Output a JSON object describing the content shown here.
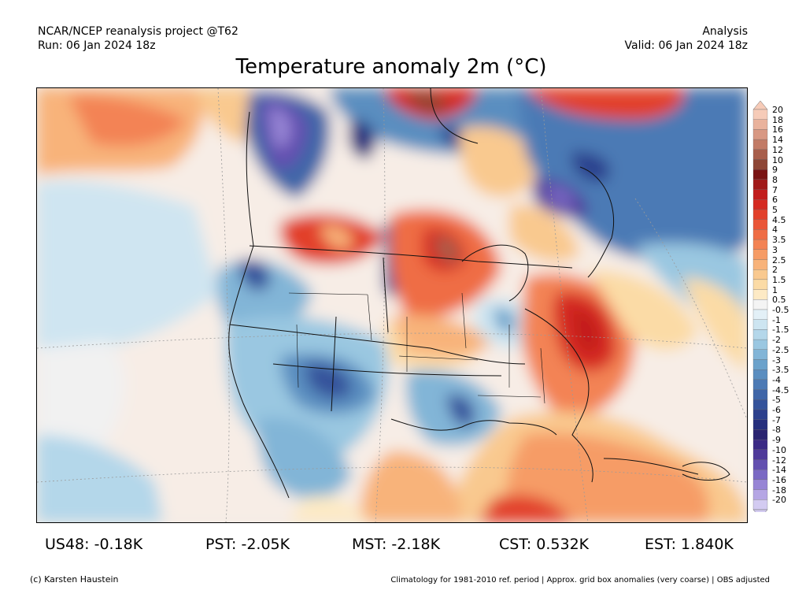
{
  "header": {
    "source": "NCAR/NCEP reanalysis project @T62",
    "run": "Run: 06 Jan 2024 18z",
    "kind": "Analysis",
    "valid": "Valid: 06 Jan 2024 18z"
  },
  "title": "Temperature anomaly 2m (°C)",
  "colorbar": {
    "levels": [
      {
        "label": "20",
        "color": "#f6cbb8"
      },
      {
        "label": "18",
        "color": "#e9b29c"
      },
      {
        "label": "16",
        "color": "#d89883"
      },
      {
        "label": "14",
        "color": "#c27b66"
      },
      {
        "label": "12",
        "color": "#a85e4b"
      },
      {
        "label": "10",
        "color": "#8e4636"
      },
      {
        "label": "9",
        "color": "#7a1414"
      },
      {
        "label": "8",
        "color": "#a11a1a"
      },
      {
        "label": "7",
        "color": "#c21d1d"
      },
      {
        "label": "6",
        "color": "#d52a22"
      },
      {
        "label": "5",
        "color": "#e2402b"
      },
      {
        "label": "4.5",
        "color": "#ea5638"
      },
      {
        "label": "4",
        "color": "#ef6d45"
      },
      {
        "label": "3.5",
        "color": "#f38354"
      },
      {
        "label": "3",
        "color": "#f69c66"
      },
      {
        "label": "2.5",
        "color": "#f8b37a"
      },
      {
        "label": "2",
        "color": "#f9c98f"
      },
      {
        "label": "1.5",
        "color": "#fbdba6"
      },
      {
        "label": "1",
        "color": "#fdeac5"
      },
      {
        "label": "0.5",
        "color": "#f4f4f4"
      },
      {
        "label": "-0.5",
        "color": "#e3f0f7"
      },
      {
        "label": "-1",
        "color": "#cde5f1"
      },
      {
        "label": "-1.5",
        "color": "#b4d7ea"
      },
      {
        "label": "-2",
        "color": "#9ac7e1"
      },
      {
        "label": "-2.5",
        "color": "#82b5d7"
      },
      {
        "label": "-3",
        "color": "#6ba2cb"
      },
      {
        "label": "-3.5",
        "color": "#5a8ec0"
      },
      {
        "label": "-4",
        "color": "#4c7ab5"
      },
      {
        "label": "-4.5",
        "color": "#3f66a8"
      },
      {
        "label": "-5",
        "color": "#34539b"
      },
      {
        "label": "-6",
        "color": "#2c408d"
      },
      {
        "label": "-7",
        "color": "#262f7d"
      },
      {
        "label": "-8",
        "color": "#2a2471"
      },
      {
        "label": "-9",
        "color": "#3b2a85"
      },
      {
        "label": "-10",
        "color": "#4f3a9a"
      },
      {
        "label": "-12",
        "color": "#6350b0"
      },
      {
        "label": "-14",
        "color": "#7a69c4"
      },
      {
        "label": "-16",
        "color": "#9785d5"
      },
      {
        "label": "-18",
        "color": "#b5a6e4"
      },
      {
        "label": "-20",
        "color": "#d3cbf1"
      }
    ]
  },
  "stats": [
    {
      "label": "US48: -0.18K"
    },
    {
      "label": "PST: -2.05K"
    },
    {
      "label": "MST: -2.18K"
    },
    {
      "label": "CST: 0.532K"
    },
    {
      "label": "EST: 1.840K"
    }
  ],
  "footer": {
    "credit": "(c) Karsten Haustein",
    "note": "Climatology for 1981-2010 ref. period | Approx. grid box anomalies (very coarse) | OBS adjusted"
  }
}
